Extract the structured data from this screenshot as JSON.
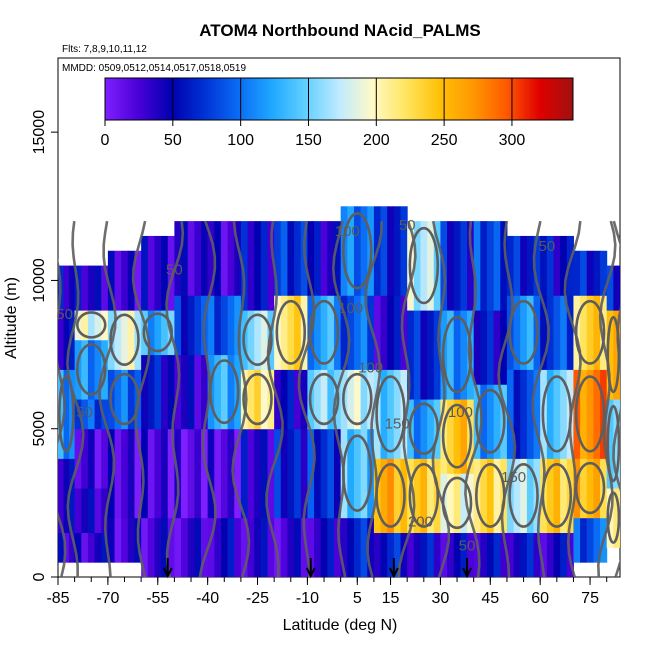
{
  "chart_data": {
    "type": "heatmap",
    "title": "ATOM4 Northbound NAcid_PALMS",
    "flights_note": "Flts: 7,8,9,10,11,12",
    "dates_note": "MMDD: 0509,0512,0514,0517,0518,0519",
    "xlabel": "Latitude (deg N)",
    "ylabel": "Altitude (m)",
    "xlim": [
      -85,
      84
    ],
    "ylim": [
      0,
      17500
    ],
    "x_tick_labels": [
      "-85",
      "-70",
      "-55",
      "-40",
      "-25",
      "-10",
      "5",
      "15",
      "30",
      "45",
      "60",
      "75"
    ],
    "x_ticks": [
      -85,
      -70,
      -55,
      -40,
      -25,
      -10,
      5,
      15,
      30,
      45,
      60,
      75
    ],
    "x_minor_step": 5,
    "y_ticks": [
      0,
      5000,
      10000,
      15000
    ],
    "y_tick_labels": [
      "0",
      "5000",
      "10000",
      "15000"
    ],
    "colorbar": {
      "ticks": [
        0,
        50,
        100,
        150,
        200,
        250,
        300
      ],
      "tick_labels": [
        "0",
        "50",
        "100",
        "150",
        "200",
        "250",
        "300"
      ],
      "range": [
        0,
        345
      ],
      "colors": [
        "#7f1fff",
        "#4a00d8",
        "#0000b0",
        "#0033d6",
        "#0a6cf5",
        "#1fa8ff",
        "#62d0ff",
        "#bfeaff",
        "#fff9c8",
        "#ffe560",
        "#ffc107",
        "#ff9800",
        "#ff5a00",
        "#e00000",
        "#a01010"
      ]
    },
    "grid": false,
    "contour_levels": [
      50,
      100,
      150,
      200
    ],
    "contour_labels": [
      {
        "text": "50",
        "x": -50,
        "y": 10200
      },
      {
        "text": "100",
        "x": 2,
        "y": 11500
      },
      {
        "text": "50",
        "x": 20,
        "y": 11700
      },
      {
        "text": "50",
        "x": 62,
        "y": 11000
      },
      {
        "text": "50",
        "x": -83,
        "y": 8700
      },
      {
        "text": "100",
        "x": 3,
        "y": 8900
      },
      {
        "text": "50",
        "x": -77,
        "y": 5400
      },
      {
        "text": "100",
        "x": 9,
        "y": 6900
      },
      {
        "text": "150",
        "x": 17,
        "y": 5000
      },
      {
        "text": "150",
        "x": 52,
        "y": 3200
      },
      {
        "text": "100",
        "x": 36,
        "y": 5400
      },
      {
        "text": "200",
        "x": 24,
        "y": 1700
      },
      {
        "text": "50",
        "x": 38,
        "y": 900
      }
    ],
    "flight_markers_lat": [
      -52,
      -9,
      16,
      38
    ],
    "series": [
      {
        "lat_bin": [
          -85,
          -80
        ],
        "alt": [
          [
            500,
            1500,
            40
          ],
          [
            1500,
            4000,
            45
          ],
          [
            4000,
            7000,
            120
          ],
          [
            7000,
            9000,
            55
          ],
          [
            9000,
            10500,
            45
          ]
        ]
      },
      {
        "lat_bin": [
          -80,
          -70
        ],
        "alt": [
          [
            500,
            1500,
            35
          ],
          [
            1500,
            3000,
            42
          ],
          [
            3000,
            5000,
            20
          ],
          [
            5000,
            6000,
            90
          ],
          [
            6000,
            8000,
            110
          ],
          [
            8000,
            9000,
            190
          ],
          [
            9000,
            10500,
            40
          ]
        ]
      },
      {
        "lat_bin": [
          -70,
          -60
        ],
        "alt": [
          [
            500,
            2000,
            30
          ],
          [
            2000,
            5000,
            25
          ],
          [
            5000,
            7000,
            100
          ],
          [
            7000,
            9000,
            180
          ],
          [
            9000,
            11000,
            30
          ]
        ]
      },
      {
        "lat_bin": [
          -60,
          -50
        ],
        "alt": [
          [
            0,
            2000,
            30
          ],
          [
            2000,
            5000,
            25
          ],
          [
            5000,
            7500,
            60
          ],
          [
            7500,
            9000,
            130
          ],
          [
            9000,
            11500,
            35
          ]
        ]
      },
      {
        "lat_bin": [
          -50,
          -40
        ],
        "alt": [
          [
            0,
            2000,
            30
          ],
          [
            2000,
            5000,
            15
          ],
          [
            5000,
            7500,
            40
          ],
          [
            7500,
            9500,
            70
          ],
          [
            9500,
            12000,
            30
          ]
        ]
      },
      {
        "lat_bin": [
          -40,
          -30
        ],
        "alt": [
          [
            0,
            2000,
            40
          ],
          [
            2000,
            5000,
            20
          ],
          [
            5000,
            7500,
            130
          ],
          [
            7500,
            9500,
            90
          ],
          [
            9500,
            12000,
            25
          ]
        ]
      },
      {
        "lat_bin": [
          -30,
          -20
        ],
        "alt": [
          [
            0,
            2000,
            35
          ],
          [
            2000,
            5000,
            40
          ],
          [
            5000,
            7000,
            220
          ],
          [
            7000,
            9000,
            160
          ],
          [
            9000,
            12000,
            50
          ]
        ]
      },
      {
        "lat_bin": [
          -20,
          -10
        ],
        "alt": [
          [
            0,
            2000,
            30
          ],
          [
            2000,
            5000,
            60
          ],
          [
            5000,
            7000,
            50
          ],
          [
            7000,
            9500,
            220
          ],
          [
            9500,
            12000,
            70
          ]
        ]
      },
      {
        "lat_bin": [
          -10,
          0
        ],
        "alt": [
          [
            0,
            2000,
            40
          ],
          [
            2000,
            5000,
            70
          ],
          [
            5000,
            7000,
            160
          ],
          [
            7000,
            9500,
            120
          ],
          [
            9500,
            12000,
            40
          ]
        ]
      },
      {
        "lat_bin": [
          0,
          10
        ],
        "alt": [
          [
            0,
            2000,
            60
          ],
          [
            2000,
            5000,
            140
          ],
          [
            5000,
            7000,
            180
          ],
          [
            7000,
            9500,
            90
          ],
          [
            9500,
            12500,
            100
          ]
        ]
      },
      {
        "lat_bin": [
          10,
          20
        ],
        "alt": [
          [
            0,
            1500,
            60
          ],
          [
            1500,
            4000,
            260
          ],
          [
            4000,
            7000,
            150
          ],
          [
            7000,
            9500,
            40
          ],
          [
            9500,
            12500,
            60
          ]
        ]
      },
      {
        "lat_bin": [
          20,
          30
        ],
        "alt": [
          [
            0,
            1500,
            50
          ],
          [
            1500,
            4000,
            240
          ],
          [
            4000,
            6000,
            120
          ],
          [
            6000,
            9000,
            60
          ],
          [
            9000,
            12000,
            170
          ]
        ]
      },
      {
        "lat_bin": [
          30,
          40
        ],
        "alt": [
          [
            0,
            1500,
            40
          ],
          [
            1500,
            3500,
            200
          ],
          [
            3500,
            6000,
            240
          ],
          [
            6000,
            9000,
            110
          ],
          [
            9000,
            12000,
            60
          ]
        ]
      },
      {
        "lat_bin": [
          40,
          50
        ],
        "alt": [
          [
            0,
            1500,
            45
          ],
          [
            1500,
            4000,
            230
          ],
          [
            4000,
            6500,
            120
          ],
          [
            6500,
            9000,
            50
          ],
          [
            9000,
            12000,
            80
          ]
        ]
      },
      {
        "lat_bin": [
          50,
          60
        ],
        "alt": [
          [
            0,
            1500,
            50
          ],
          [
            1500,
            4000,
            170
          ],
          [
            4000,
            7000,
            80
          ],
          [
            7000,
            9500,
            110
          ],
          [
            9500,
            11500,
            60
          ]
        ]
      },
      {
        "lat_bin": [
          60,
          70
        ],
        "alt": [
          [
            0,
            1500,
            40
          ],
          [
            1500,
            4000,
            240
          ],
          [
            4000,
            7000,
            150
          ],
          [
            7000,
            9500,
            80
          ],
          [
            9500,
            11500,
            50
          ]
        ]
      },
      {
        "lat_bin": [
          70,
          80
        ],
        "alt": [
          [
            500,
            2000,
            90
          ],
          [
            2000,
            4000,
            250
          ],
          [
            4000,
            7000,
            280
          ],
          [
            7000,
            9500,
            230
          ],
          [
            9500,
            11000,
            60
          ]
        ]
      },
      {
        "lat_bin": [
          80,
          84
        ],
        "alt": [
          [
            1000,
            3000,
            200
          ],
          [
            3000,
            6000,
            150
          ],
          [
            6000,
            9000,
            240
          ],
          [
            9000,
            10500,
            60
          ]
        ]
      }
    ]
  }
}
